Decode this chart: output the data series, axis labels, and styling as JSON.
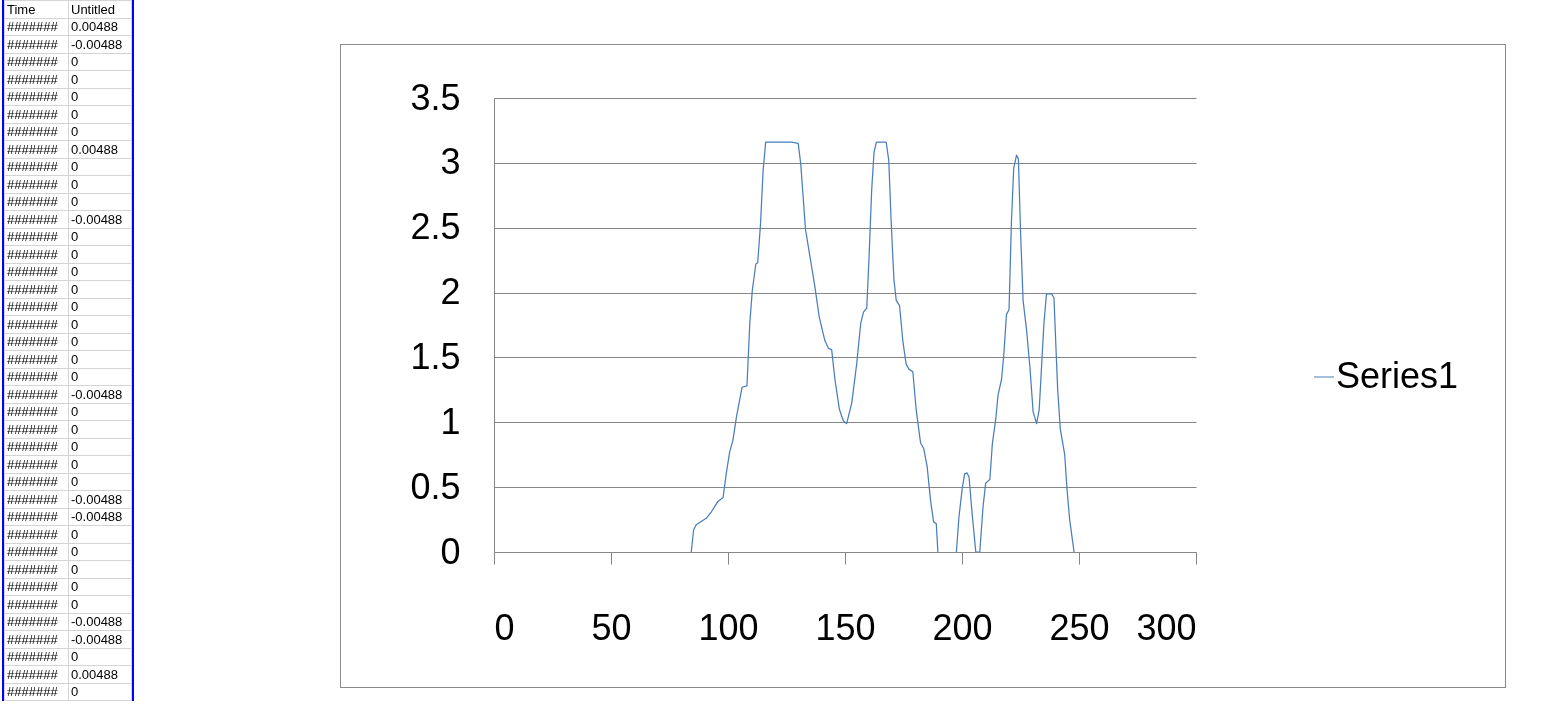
{
  "chart_data": [
    {
      "type": "other",
      "categories": [
        "Time",
        "Untitled"
      ],
      "cell_labels": [
        [
          "#######",
          "0.00488"
        ],
        [
          "#######",
          "-0.00488"
        ],
        [
          "#######",
          "0"
        ],
        [
          "#######",
          "0"
        ],
        [
          "#######",
          "0"
        ],
        [
          "#######",
          "0"
        ],
        [
          "#######",
          "0"
        ],
        [
          "#######",
          "0.00488"
        ],
        [
          "#######",
          "0"
        ],
        [
          "#######",
          "0"
        ],
        [
          "#######",
          "0"
        ],
        [
          "#######",
          "-0.00488"
        ],
        [
          "#######",
          "0"
        ],
        [
          "#######",
          "0"
        ],
        [
          "#######",
          "0"
        ],
        [
          "#######",
          "0"
        ],
        [
          "#######",
          "0"
        ],
        [
          "#######",
          "0"
        ],
        [
          "#######",
          "0"
        ],
        [
          "#######",
          "0"
        ],
        [
          "#######",
          "0"
        ],
        [
          "#######",
          "-0.00488"
        ],
        [
          "#######",
          "0"
        ],
        [
          "#######",
          "0"
        ],
        [
          "#######",
          "0"
        ],
        [
          "#######",
          "0"
        ],
        [
          "#######",
          "0"
        ],
        [
          "#######",
          "-0.00488"
        ],
        [
          "#######",
          "-0.00488"
        ],
        [
          "#######",
          "0"
        ],
        [
          "#######",
          "0"
        ],
        [
          "#######",
          "0"
        ],
        [
          "#######",
          "0"
        ],
        [
          "#######",
          "0"
        ],
        [
          "#######",
          "-0.00488"
        ],
        [
          "#######",
          "-0.00488"
        ],
        [
          "#######",
          "0"
        ],
        [
          "#######",
          "0.00488"
        ],
        [
          "#######",
          "0"
        ]
      ]
    },
    {
      "type": "line",
      "xlim": [
        0,
        300
      ],
      "xticks": [
        0,
        50,
        100,
        150,
        200,
        250,
        300
      ],
      "ylim": [
        0,
        3.5
      ],
      "yticks": [
        0,
        0.5,
        1,
        1.5,
        2,
        2.5,
        3,
        3.5
      ],
      "grid": "y",
      "legend": "right",
      "x": [
        84.3,
        85.3,
        86.4,
        90.7,
        92.9,
        95.7,
        97.9,
        99.3,
        100.7,
        102.1,
        103.6,
        106,
        108.1,
        109.3,
        110.4,
        111.9,
        112.7,
        113.9,
        115,
        116.1,
        117.9,
        123.6,
        127.1,
        130,
        131.1,
        132.1,
        133.1,
        135,
        137.1,
        139,
        141.4,
        142.9,
        144.3,
        145.7,
        147.6,
        149.3,
        150.7,
        152.9,
        155,
        156.7,
        157.9,
        159.3,
        160.3,
        161.4,
        162.4,
        163.4,
        167.6,
        168.7,
        169.7,
        170.9,
        171.9,
        173.3,
        174.7,
        176.1,
        177.3,
        179,
        180.4,
        182.3,
        183.6,
        185.1,
        186.6,
        187.9,
        189,
        189.7,
        193.6,
        197.6,
        198.7,
        200.1,
        201.1,
        202.1,
        203,
        204.3,
        205.9,
        207.6,
        209,
        210.1,
        211.9,
        213,
        214.4,
        215.4,
        216.9,
        217.9,
        219,
        220.1,
        221.1,
        222.1,
        223.3,
        224.1,
        225,
        226.1,
        227.6,
        229,
        230.4,
        231.9,
        233,
        234,
        235,
        236.1,
        238.3,
        239.3,
        240.3,
        240.9,
        242,
        243.9,
        244.9,
        246,
        247.9
      ],
      "series": [
        {
          "name": "Series1",
          "color": "#4a7ebb",
          "values": [
            0,
            0.17,
            0.21,
            0.26,
            0.31,
            0.39,
            0.42,
            0.61,
            0.77,
            0.86,
            1.04,
            1.27,
            1.28,
            1.76,
            2.02,
            2.22,
            2.23,
            2.53,
            2.94,
            3.16,
            3.16,
            3.16,
            3.16,
            3.15,
            2.99,
            2.74,
            2.49,
            2.28,
            2.05,
            1.81,
            1.63,
            1.57,
            1.56,
            1.33,
            1.1,
            1.01,
            0.99,
            1.15,
            1.45,
            1.76,
            1.85,
            1.88,
            2.28,
            2.79,
            3.08,
            3.16,
            3.16,
            3.02,
            2.56,
            2.1,
            1.94,
            1.9,
            1.63,
            1.45,
            1.41,
            1.39,
            1.1,
            0.84,
            0.8,
            0.66,
            0.39,
            0.23,
            0.22,
            0,
            null,
            0,
            0.27,
            0.49,
            0.6,
            0.61,
            0.58,
            0.3,
            0,
            0,
            0.35,
            0.53,
            0.56,
            0.84,
            1.02,
            1.21,
            1.33,
            1.53,
            1.83,
            1.87,
            2.53,
            2.96,
            3.06,
            3.03,
            2.48,
            1.94,
            1.71,
            1.43,
            1.08,
            0.99,
            1.1,
            1.43,
            1.76,
            1.99,
            1.99,
            1.96,
            1.51,
            1.25,
            0.95,
            0.75,
            0.48,
            0.25,
            0
          ]
        }
      ]
    }
  ]
}
